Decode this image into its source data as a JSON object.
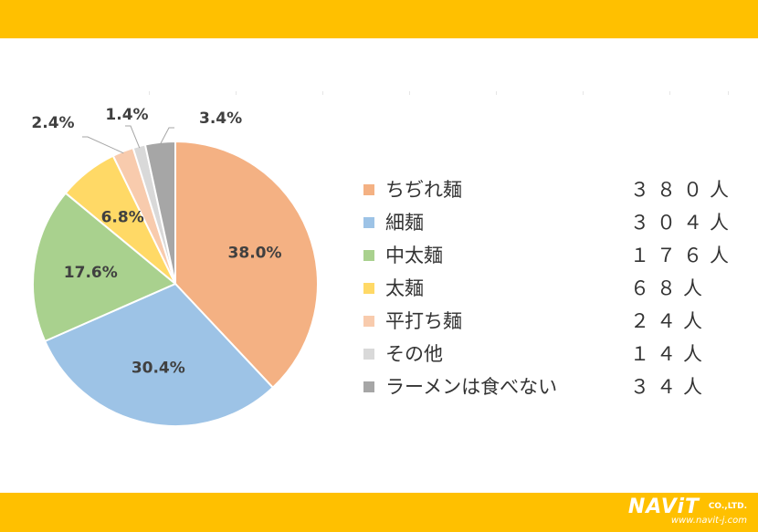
{
  "colors": {
    "band": "#ffc000",
    "leader": "#a6a6a6",
    "slice_label": "#404040"
  },
  "logo": {
    "brand": "NAViT",
    "suffix": "CO.,LTD.",
    "url": "www.navit-j.com"
  },
  "chart_data": {
    "type": "pie",
    "title": "",
    "start_angle_deg": 0,
    "direction": "clockwise",
    "slices": [
      {
        "name": "ちぢれ麺",
        "count_label": "３８０人",
        "count": 380,
        "percent": 38.0,
        "percent_label": "38.0%",
        "color": "#f4b183",
        "label_style": "inside"
      },
      {
        "name": "細麺",
        "count_label": "３０４人",
        "count": 304,
        "percent": 30.4,
        "percent_label": "30.4%",
        "color": "#9dc3e6",
        "label_style": "inside"
      },
      {
        "name": "中太麺",
        "count_label": "１７６人",
        "count": 176,
        "percent": 17.6,
        "percent_label": "17.6%",
        "color": "#a9d18e",
        "label_style": "inside"
      },
      {
        "name": "太麺",
        "count_label": "６８人",
        "count": 68,
        "percent": 6.8,
        "percent_label": "6.8%",
        "color": "#ffd966",
        "label_style": "inside"
      },
      {
        "name": "平打ち麺",
        "count_label": "２４人",
        "count": 24,
        "percent": 2.4,
        "percent_label": "2.4%",
        "color": "#f8cbad",
        "label_style": "outside-left"
      },
      {
        "name": "その他",
        "count_label": "１４人",
        "count": 14,
        "percent": 1.4,
        "percent_label": "1.4%",
        "color": "#d9d9d9",
        "label_style": "outside-top"
      },
      {
        "name": "ラーメンは食べない",
        "count_label": "３４人",
        "count": 34,
        "percent": 3.4,
        "percent_label": "3.4%",
        "color": "#a6a6a6",
        "label_style": "outside-top"
      }
    ],
    "legend_position": "right"
  }
}
